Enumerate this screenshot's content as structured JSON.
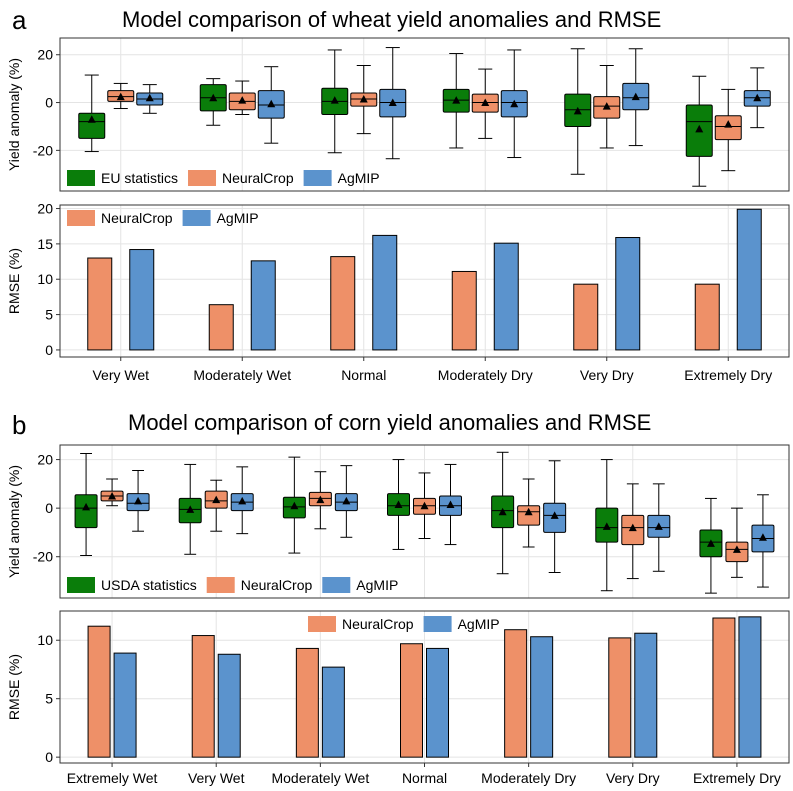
{
  "colors": {
    "statistics": "#0a7d0a",
    "neuralcrop": "#ee9068",
    "agmip": "#5b93cd",
    "grid": "#e4e4e4",
    "frame": "#333333"
  },
  "panel_a": {
    "letter": "a",
    "title": "Model comparison of wheat yield anomalies and RMSE"
  },
  "panel_b": {
    "letter": "b",
    "title": "Model comparison of corn yield anomalies and RMSE"
  },
  "chart_data": [
    {
      "id": "a-box",
      "type": "box",
      "title": "Model comparison of wheat yield anomalies and RMSE",
      "ylabel": "Yield anomaly (%)",
      "ylim": [
        -37,
        27
      ],
      "yticks": [
        -20,
        0,
        20
      ],
      "categories": [
        "Very Wet",
        "Moderately Wet",
        "Normal",
        "Moderately Dry",
        "Very Dry",
        "Extremely Dry"
      ],
      "legend": {
        "position": "bottom-left",
        "entries": [
          "EU statistics",
          "NeuralCrop",
          "AgMIP"
        ]
      },
      "series": [
        {
          "name": "EU statistics",
          "color_key": "statistics",
          "boxes": [
            [
              -20.5,
              -15,
              -8,
              -4.5,
              11.5,
              -7
            ],
            [
              -9.5,
              -3.5,
              2,
              7.5,
              10,
              2
            ],
            [
              -21,
              -5,
              0.5,
              6,
              22,
              1
            ],
            [
              -19,
              -4,
              1,
              5.5,
              20.5,
              1
            ],
            [
              -30,
              -10,
              -3,
              3.5,
              22.5,
              -3.5
            ],
            [
              -35,
              -22.5,
              -8,
              -1,
              11,
              -11
            ]
          ]
        },
        {
          "name": "NeuralCrop",
          "color_key": "neuralcrop",
          "boxes": [
            [
              -2.5,
              0.5,
              2.5,
              5,
              8,
              2.5
            ],
            [
              -5,
              -3,
              0.5,
              4,
              9,
              1
            ],
            [
              -13,
              -1.5,
              1.5,
              4,
              15.5,
              1.5
            ],
            [
              -15,
              -4,
              0,
              3.5,
              14,
              0
            ],
            [
              -19,
              -6.5,
              -1.5,
              2.5,
              15.5,
              -1.5
            ],
            [
              -28.5,
              -15.5,
              -10,
              -5.5,
              5.5,
              -9
            ]
          ]
        },
        {
          "name": "AgMIP",
          "color_key": "agmip",
          "boxes": [
            [
              -4.5,
              -1,
              1.5,
              4,
              7.5,
              2
            ],
            [
              -17,
              -6.5,
              -1,
              5,
              15,
              -0.5
            ],
            [
              -23.5,
              -6,
              0,
              5.5,
              23,
              0
            ],
            [
              -23,
              -6,
              0,
              5,
              22,
              -0.5
            ],
            [
              -18,
              -3,
              2,
              8,
              22.5,
              2.5
            ],
            [
              -10.5,
              -1.5,
              2,
              5,
              14.5,
              2
            ]
          ]
        }
      ]
    },
    {
      "id": "a-bar",
      "type": "bar",
      "ylabel": "RMSE (%)",
      "ylim": [
        -1,
        20.5
      ],
      "yticks": [
        0,
        5,
        10,
        15,
        20
      ],
      "categories": [
        "Very Wet",
        "Moderately Wet",
        "Normal",
        "Moderately Dry",
        "Very Dry",
        "Extremely Dry"
      ],
      "legend": {
        "position": "top-left",
        "entries": [
          "NeuralCrop",
          "AgMIP"
        ]
      },
      "series": [
        {
          "name": "NeuralCrop",
          "color_key": "neuralcrop",
          "values": [
            13.0,
            6.4,
            13.2,
            11.1,
            9.3,
            9.3
          ]
        },
        {
          "name": "AgMIP",
          "color_key": "agmip",
          "values": [
            14.2,
            12.6,
            16.2,
            15.1,
            15.9,
            19.9
          ]
        }
      ]
    },
    {
      "id": "b-box",
      "type": "box",
      "title": "Model comparison of corn yield anomalies and RMSE",
      "ylabel": "Yield anomaly (%)",
      "ylim": [
        -37,
        26
      ],
      "yticks": [
        -20,
        0,
        20
      ],
      "categories": [
        "Extremely Wet",
        "Very Wet",
        "Moderately Wet",
        "Normal",
        "Moderately Dry",
        "Very Dry",
        "Extremely Dry"
      ],
      "legend": {
        "position": "bottom-left",
        "entries": [
          "USDA statistics",
          "NeuralCrop",
          "AgMIP"
        ]
      },
      "series": [
        {
          "name": "USDA statistics",
          "color_key": "statistics",
          "boxes": [
            [
              -19.5,
              -8,
              0,
              5.5,
              22.5,
              0.5
            ],
            [
              -19,
              -6,
              -0.5,
              4,
              18,
              -0.5
            ],
            [
              -18.5,
              -4,
              0.5,
              4.5,
              21,
              1
            ],
            [
              -17,
              -3,
              1,
              6,
              20,
              1.5
            ],
            [
              -27,
              -8,
              -1,
              5,
              23,
              -1.5
            ],
            [
              -34,
              -14,
              -8,
              0,
              20,
              -7.5
            ],
            [
              -35,
              -20,
              -14,
              -9,
              4,
              -14.5
            ]
          ]
        },
        {
          "name": "NeuralCrop",
          "color_key": "neuralcrop",
          "boxes": [
            [
              1,
              3,
              5,
              7,
              12,
              5
            ],
            [
              -9.5,
              0,
              3,
              7,
              11.5,
              3.5
            ],
            [
              -8.5,
              1,
              4,
              6.5,
              15,
              3.5
            ],
            [
              -12.5,
              -2.5,
              1,
              4,
              14.5,
              1
            ],
            [
              -16,
              -7,
              -1.5,
              1,
              12,
              -1.5
            ],
            [
              -29,
              -15,
              -8,
              -3,
              10,
              -8
            ],
            [
              -28.5,
              -22,
              -17,
              -14,
              0,
              -17
            ]
          ]
        },
        {
          "name": "AgMIP",
          "color_key": "agmip",
          "boxes": [
            [
              -9.5,
              -1,
              2,
              6,
              15.5,
              3
            ],
            [
              -10.5,
              -1,
              2.5,
              6,
              17,
              3
            ],
            [
              -12,
              -1,
              2.5,
              6,
              17.5,
              3
            ],
            [
              -15,
              -3,
              1,
              5,
              18,
              1.5
            ],
            [
              -26.5,
              -10,
              -3,
              2,
              19.5,
              -3
            ],
            [
              -26,
              -12,
              -8,
              -3,
              10,
              -7.5
            ],
            [
              -32.5,
              -18,
              -12.5,
              -7,
              5.5,
              -12
            ]
          ]
        }
      ]
    },
    {
      "id": "b-bar",
      "type": "bar",
      "ylabel": "RMSE (%)",
      "ylim": [
        -0.5,
        12.5
      ],
      "yticks": [
        0,
        5,
        10
      ],
      "categories": [
        "Extremely Wet",
        "Very Wet",
        "Moderately Wet",
        "Normal",
        "Moderately Dry",
        "Very Dry",
        "Extremely Dry"
      ],
      "legend": {
        "position": "top-center",
        "entries": [
          "NeuralCrop",
          "AgMIP"
        ]
      },
      "series": [
        {
          "name": "NeuralCrop",
          "color_key": "neuralcrop",
          "values": [
            11.2,
            10.4,
            9.3,
            9.7,
            10.9,
            10.2,
            11.9
          ]
        },
        {
          "name": "AgMIP",
          "color_key": "agmip",
          "values": [
            8.9,
            8.8,
            7.7,
            9.3,
            10.3,
            10.6,
            12.0
          ]
        }
      ]
    }
  ]
}
